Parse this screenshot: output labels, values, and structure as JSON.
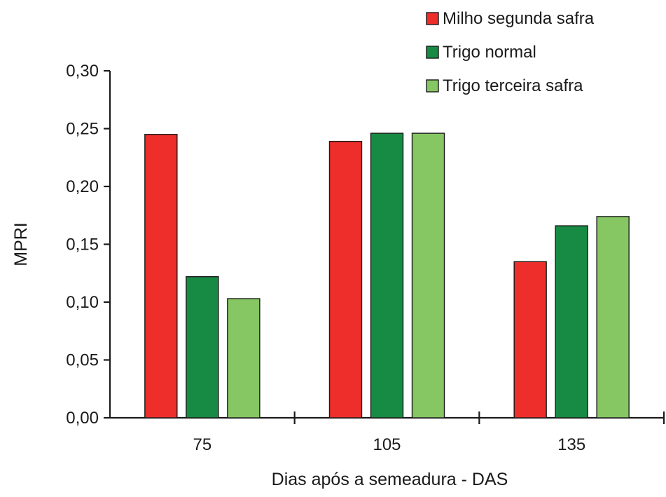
{
  "chart_data": {
    "type": "bar",
    "title": "",
    "xlabel": "Dias após a semeadura - DAS",
    "ylabel": "MPRI",
    "categories": [
      "75",
      "105",
      "135"
    ],
    "ylim": [
      0,
      0.3
    ],
    "yticks": [
      0,
      0.05,
      0.1,
      0.15,
      0.2,
      0.25,
      0.3
    ],
    "ytick_labels": [
      "0,00",
      "0,05",
      "0,10",
      "0,15",
      "0,20",
      "0,25",
      "0,30"
    ],
    "grid": false,
    "legend_position": "top-right",
    "series": [
      {
        "name": "Milho segunda safra",
        "color": "#ee2e2b",
        "values": [
          0.245,
          0.239,
          0.135
        ]
      },
      {
        "name": "Trigo normal",
        "color": "#178a43",
        "values": [
          0.122,
          0.246,
          0.166
        ]
      },
      {
        "name": "Trigo terceira safra",
        "color": "#86c764",
        "values": [
          0.103,
          0.246,
          0.174
        ]
      }
    ]
  }
}
